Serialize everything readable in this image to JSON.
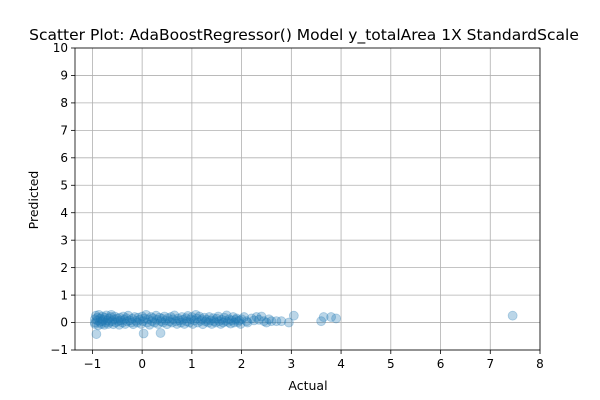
{
  "chart_data": {
    "type": "scatter",
    "title": "Scatter Plot: AdaBoostRegressor() Model y_totalArea 1X StandardScale",
    "xlabel": "Actual",
    "ylabel": "Predicted",
    "xlim": [
      -1.35,
      8.0
    ],
    "ylim": [
      -1,
      10
    ],
    "xticks": [
      -1,
      0,
      1,
      2,
      3,
      4,
      5,
      6,
      7,
      8
    ],
    "xtick_labels": [
      "−1",
      "0",
      "1",
      "2",
      "3",
      "4",
      "5",
      "6",
      "7",
      "8"
    ],
    "yticks": [
      -1,
      0,
      1,
      2,
      3,
      4,
      5,
      6,
      7,
      8,
      9,
      10
    ],
    "ytick_labels": [
      "−1",
      "0",
      "1",
      "2",
      "3",
      "4",
      "5",
      "6",
      "7",
      "8",
      "9",
      "10"
    ],
    "grid": true,
    "marker_color": "#1f77b4",
    "marker_alpha": 0.3,
    "series": [
      {
        "points": [
          [
            -0.95,
            0.0
          ],
          [
            -0.95,
            0.12
          ],
          [
            -0.95,
            -0.05
          ],
          [
            -0.93,
            0.25
          ],
          [
            -0.92,
            -0.42
          ],
          [
            -0.9,
            0.08
          ],
          [
            -0.9,
            0.18
          ],
          [
            -0.88,
            -0.1
          ],
          [
            -0.87,
            0.28
          ],
          [
            -0.85,
            0.02
          ],
          [
            -0.84,
            0.15
          ],
          [
            -0.82,
            -0.05
          ],
          [
            -0.8,
            0.22
          ],
          [
            -0.8,
            0.05
          ],
          [
            -0.78,
            0.1
          ],
          [
            -0.76,
            -0.08
          ],
          [
            -0.75,
            0.18
          ],
          [
            -0.73,
            0.0
          ],
          [
            -0.72,
            0.26
          ],
          [
            -0.7,
            0.08
          ],
          [
            -0.68,
            -0.05
          ],
          [
            -0.67,
            0.15
          ],
          [
            -0.65,
            0.02
          ],
          [
            -0.63,
            0.2
          ],
          [
            -0.62,
            0.28
          ],
          [
            -0.6,
            0.05
          ],
          [
            -0.58,
            -0.06
          ],
          [
            -0.56,
            0.12
          ],
          [
            -0.55,
            0.22
          ],
          [
            -0.53,
            0.0
          ],
          [
            -0.5,
            0.15
          ],
          [
            -0.48,
            0.05
          ],
          [
            -0.46,
            -0.08
          ],
          [
            -0.45,
            0.18
          ],
          [
            -0.43,
            0.08
          ],
          [
            -0.4,
            0.0
          ],
          [
            -0.38,
            0.22
          ],
          [
            -0.36,
            0.1
          ],
          [
            -0.34,
            -0.05
          ],
          [
            -0.32,
            0.16
          ],
          [
            -0.3,
            0.04
          ],
          [
            -0.28,
            0.25
          ],
          [
            -0.25,
            0.08
          ],
          [
            -0.22,
            0.0
          ],
          [
            -0.2,
            0.14
          ],
          [
            -0.18,
            -0.06
          ],
          [
            -0.15,
            0.2
          ],
          [
            -0.12,
            0.06
          ],
          [
            -0.1,
            0.0
          ],
          [
            -0.08,
            0.18
          ],
          [
            -0.05,
            0.1
          ],
          [
            -0.02,
            -0.05
          ],
          [
            0.0,
            0.22
          ],
          [
            0.02,
            0.05
          ],
          [
            0.03,
            -0.4
          ],
          [
            0.05,
            0.15
          ],
          [
            0.08,
            0.28
          ],
          [
            0.1,
            0.0
          ],
          [
            0.12,
            0.12
          ],
          [
            0.15,
            -0.08
          ],
          [
            0.18,
            0.2
          ],
          [
            0.2,
            0.05
          ],
          [
            0.22,
            0.16
          ],
          [
            0.25,
            0.0
          ],
          [
            0.28,
            0.25
          ],
          [
            0.3,
            0.1
          ],
          [
            0.32,
            -0.05
          ],
          [
            0.35,
            0.18
          ],
          [
            0.37,
            -0.38
          ],
          [
            0.38,
            0.05
          ],
          [
            0.4,
            0.14
          ],
          [
            0.42,
            0.0
          ],
          [
            0.45,
            0.22
          ],
          [
            0.48,
            0.08
          ],
          [
            0.5,
            -0.06
          ],
          [
            0.52,
            0.16
          ],
          [
            0.55,
            0.04
          ],
          [
            0.58,
            0.2
          ],
          [
            0.6,
            0.0
          ],
          [
            0.62,
            0.12
          ],
          [
            0.65,
            0.26
          ],
          [
            0.68,
            0.05
          ],
          [
            0.7,
            -0.05
          ],
          [
            0.72,
            0.15
          ],
          [
            0.75,
            0.08
          ],
          [
            0.78,
            0.0
          ],
          [
            0.8,
            0.2
          ],
          [
            0.82,
            0.1
          ],
          [
            0.85,
            -0.05
          ],
          [
            0.88,
            0.16
          ],
          [
            0.9,
            0.04
          ],
          [
            0.92,
            0.24
          ],
          [
            0.95,
            0.0
          ],
          [
            0.98,
            0.12
          ],
          [
            1.0,
            0.2
          ],
          [
            1.02,
            -0.05
          ],
          [
            1.05,
            0.08
          ],
          [
            1.08,
            0.28
          ],
          [
            1.1,
            0.15
          ],
          [
            1.12,
            0.0
          ],
          [
            1.15,
            0.22
          ],
          [
            1.18,
            0.06
          ],
          [
            1.2,
            0.12
          ],
          [
            1.22,
            -0.06
          ],
          [
            1.25,
            0.18
          ],
          [
            1.28,
            0.04
          ],
          [
            1.3,
            0.1
          ],
          [
            1.33,
            0.0
          ],
          [
            1.35,
            0.2
          ],
          [
            1.38,
            0.08
          ],
          [
            1.4,
            -0.05
          ],
          [
            1.43,
            0.16
          ],
          [
            1.45,
            0.05
          ],
          [
            1.48,
            0.0
          ],
          [
            1.5,
            0.14
          ],
          [
            1.53,
            0.22
          ],
          [
            1.55,
            0.05
          ],
          [
            1.58,
            -0.05
          ],
          [
            1.6,
            0.1
          ],
          [
            1.63,
            0.0
          ],
          [
            1.65,
            0.18
          ],
          [
            1.68,
            0.06
          ],
          [
            1.7,
            0.26
          ],
          [
            1.73,
            0.02
          ],
          [
            1.75,
            0.12
          ],
          [
            1.78,
            -0.04
          ],
          [
            1.8,
            0.08
          ],
          [
            1.83,
            0.2
          ],
          [
            1.85,
            0.0
          ],
          [
            1.88,
            0.1
          ],
          [
            1.9,
            0.15
          ],
          [
            1.93,
            0.02
          ],
          [
            1.95,
            0.08
          ],
          [
            1.98,
            -0.05
          ],
          [
            2.0,
            0.12
          ],
          [
            2.05,
            0.2
          ],
          [
            2.1,
            0.05
          ],
          [
            2.12,
            0.0
          ],
          [
            2.2,
            0.15
          ],
          [
            2.25,
            0.08
          ],
          [
            2.3,
            0.2
          ],
          [
            2.35,
            0.1
          ],
          [
            2.4,
            0.22
          ],
          [
            2.45,
            0.05
          ],
          [
            2.5,
            0.0
          ],
          [
            2.55,
            0.12
          ],
          [
            2.6,
            0.05
          ],
          [
            2.7,
            0.05
          ],
          [
            2.8,
            0.05
          ],
          [
            2.95,
            0.0
          ],
          [
            3.05,
            0.25
          ],
          [
            3.6,
            0.05
          ],
          [
            3.65,
            0.2
          ],
          [
            3.8,
            0.2
          ],
          [
            3.9,
            0.15
          ],
          [
            7.45,
            0.25
          ]
        ]
      }
    ]
  }
}
